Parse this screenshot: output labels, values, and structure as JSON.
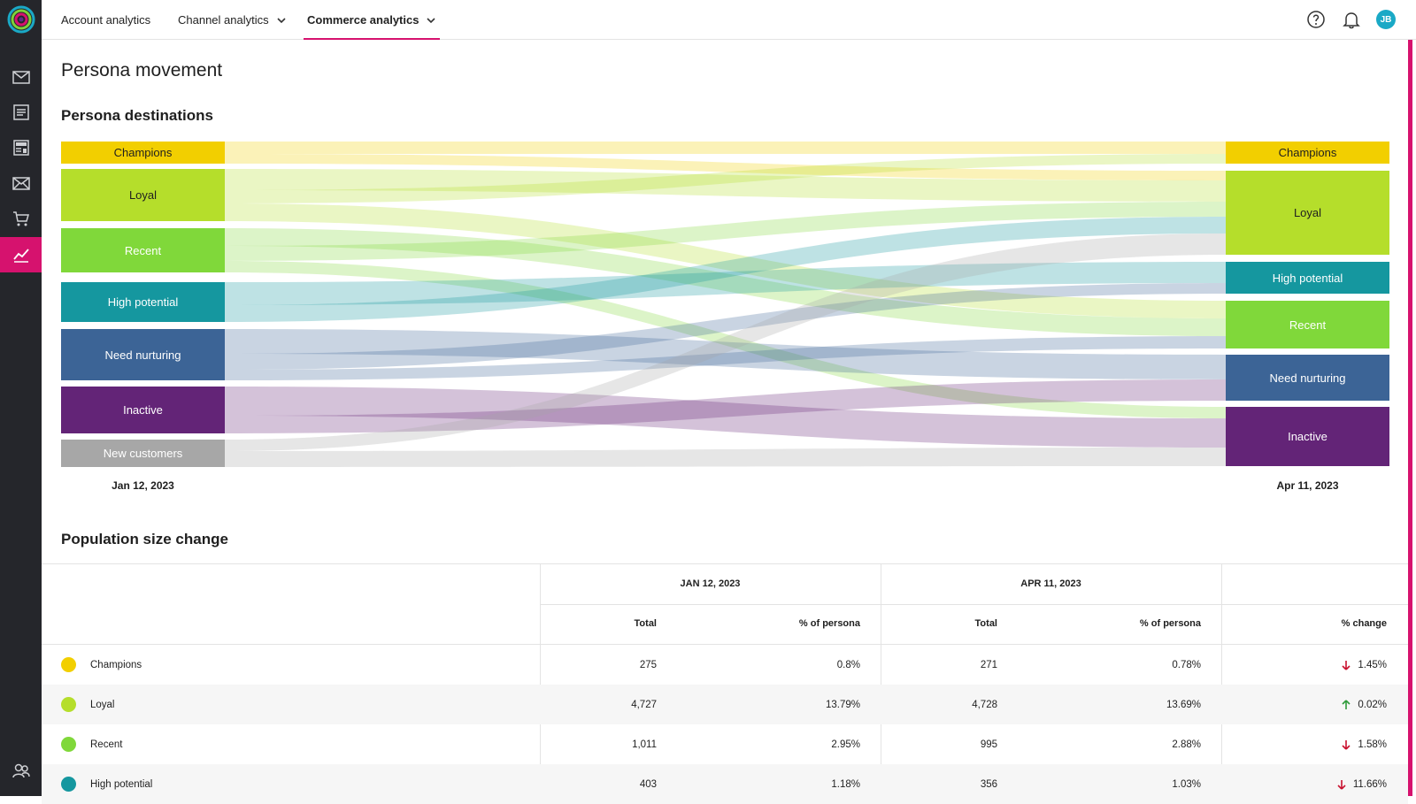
{
  "nav": {
    "tabs": [
      {
        "label": "Account analytics"
      },
      {
        "label": "Channel analytics"
      },
      {
        "label": "Commerce analytics"
      }
    ],
    "user_initials": "JB"
  },
  "page": {
    "title": "Persona movement",
    "destinations_title": "Persona destinations",
    "population_title": "Population size change"
  },
  "colors": {
    "Champions": "#f2cf00",
    "Loyal": "#b5de2b",
    "Recent": "#80d83a",
    "High potential": "#15979f",
    "Need nurturing": "#3c6496",
    "Inactive": "#632477",
    "New customers": "#a7a7a7",
    "accent": "#d6126e"
  },
  "sankey": {
    "left_date": "Jan 12, 2023",
    "right_date": "Apr 11, 2023",
    "left": [
      "Champions",
      "Loyal",
      "Recent",
      "High potential",
      "Need nurturing",
      "Inactive",
      "New customers"
    ],
    "right": [
      "Champions",
      "Loyal",
      "High potential",
      "Recent",
      "Need nurturing",
      "Inactive"
    ]
  },
  "table": {
    "group1": "JAN 12, 2023",
    "group2": "APR 11, 2023",
    "col_total": "Total",
    "col_pct": "% of persona",
    "col_change": "% change",
    "rows": [
      {
        "name": "Champions",
        "color": "#f2cf00",
        "t1": "275",
        "p1": "0.8%",
        "t2": "271",
        "p2": "0.78%",
        "dir": "down",
        "change": "1.45%"
      },
      {
        "name": "Loyal",
        "color": "#b5de2b",
        "t1": "4,727",
        "p1": "13.79%",
        "t2": "4,728",
        "p2": "13.69%",
        "dir": "up",
        "change": "0.02%"
      },
      {
        "name": "Recent",
        "color": "#80d83a",
        "t1": "1,011",
        "p1": "2.95%",
        "t2": "995",
        "p2": "2.88%",
        "dir": "down",
        "change": "1.58%"
      },
      {
        "name": "High potential",
        "color": "#15979f",
        "t1": "403",
        "p1": "1.18%",
        "t2": "356",
        "p2": "1.03%",
        "dir": "down",
        "change": "11.66%"
      }
    ]
  }
}
